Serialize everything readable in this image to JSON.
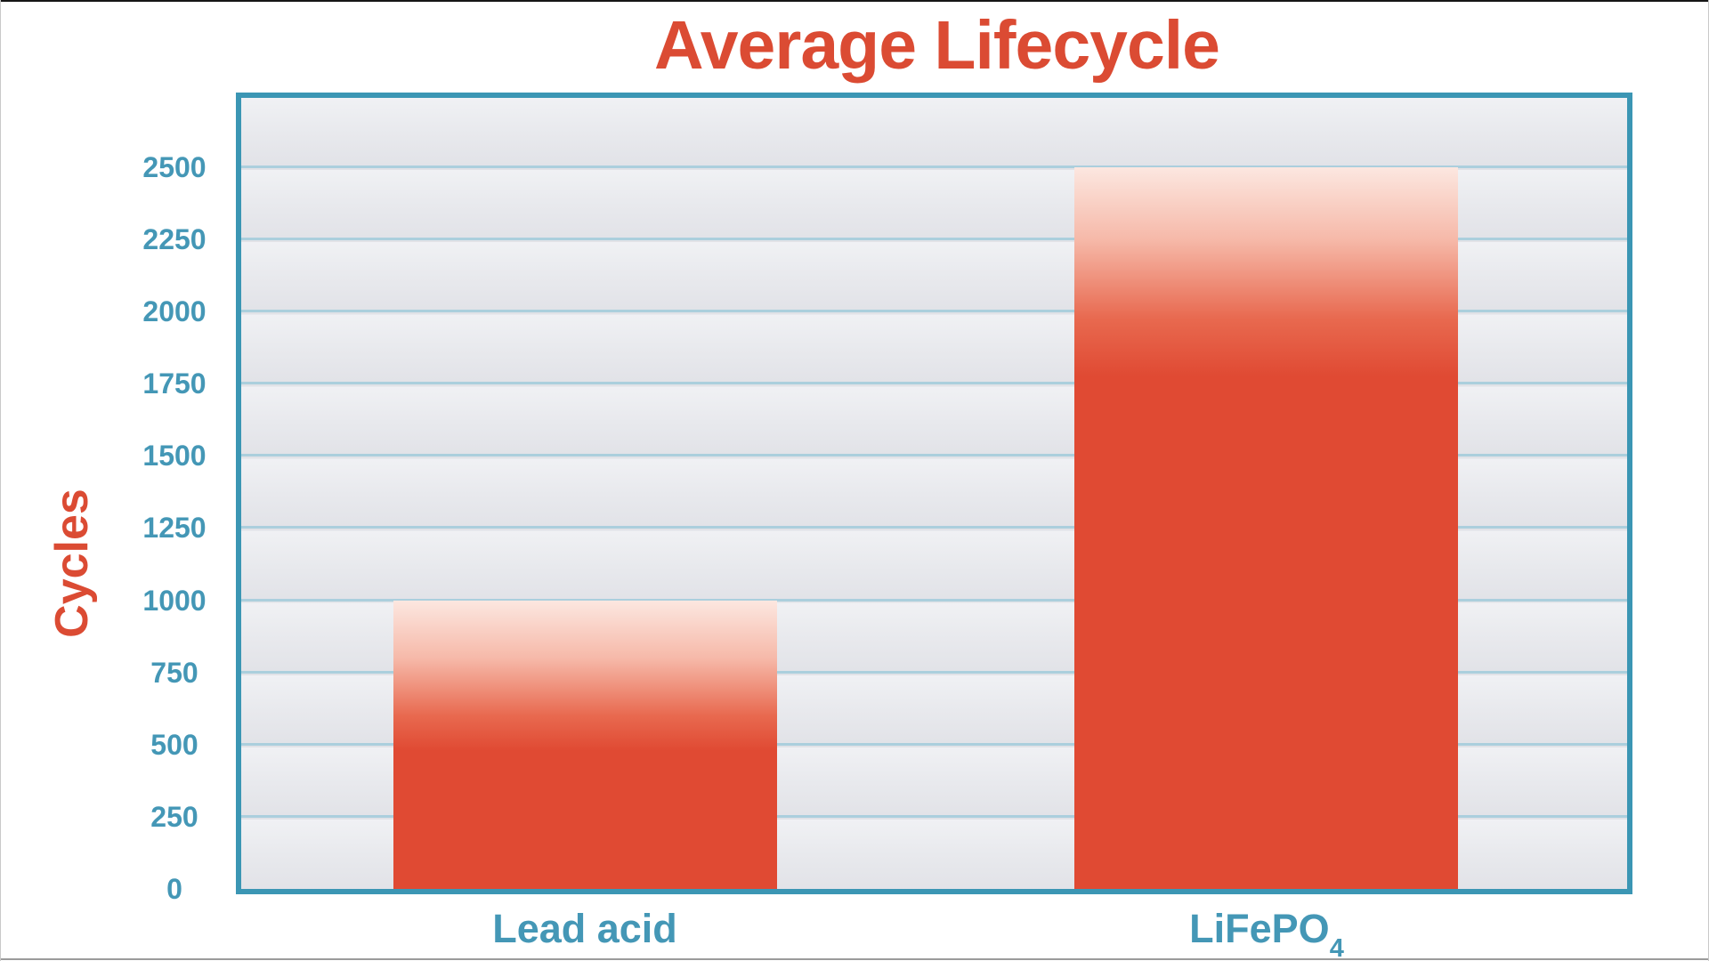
{
  "chart_data": {
    "type": "bar",
    "title": "Average Lifecycle",
    "ylabel": "Cycles",
    "xlabel": "",
    "categories": [
      {
        "label": "Lead acid",
        "sub": ""
      },
      {
        "label": "LiFePO",
        "sub": "4"
      }
    ],
    "values": [
      1000,
      2500
    ],
    "yticks": [
      0,
      250,
      500,
      750,
      1000,
      1250,
      1500,
      1750,
      2000,
      2250,
      2500
    ],
    "ylim": [
      0,
      2740
    ],
    "grid": "horizontal",
    "legend": "none",
    "colors": {
      "bar_solid": "#e04a33",
      "bar_fade_top": "#fce7e0",
      "title_text": "#db4b33",
      "axis_text": "#4497b6",
      "axis_border": "#3b96b4",
      "gridline": "#abcfdd",
      "plot_bg_light": "#f0f1f4",
      "plot_bg_dark": "#e1e2e7"
    }
  }
}
